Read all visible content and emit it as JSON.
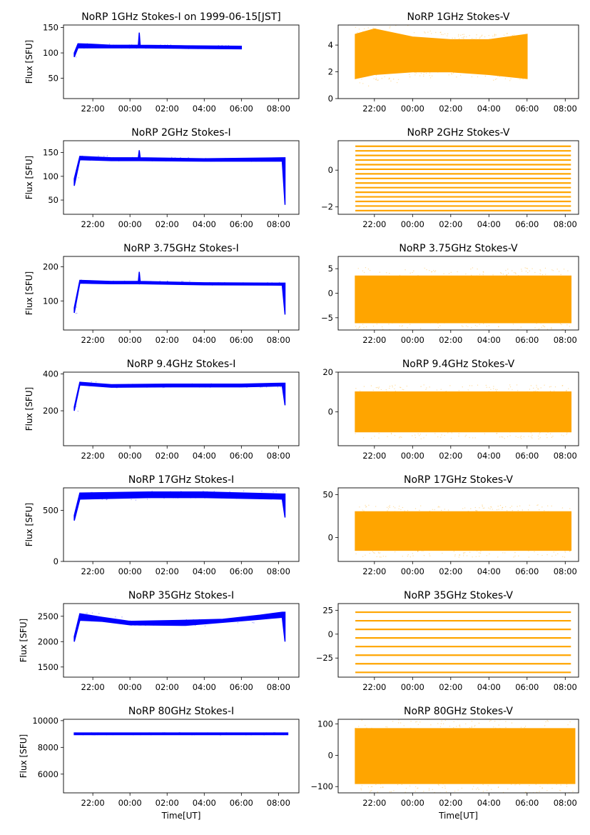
{
  "chart_data": [
    {
      "type": "scatter",
      "title": "NoRP 1GHz Stokes-I on 1999-06-15[JST]",
      "ylabel": "Flux [SFU]",
      "xlabel": "",
      "color": "#0000ff",
      "ylim": [
        10,
        155
      ],
      "yticks": [
        50,
        100,
        150
      ],
      "xlim": [
        20.42,
        33.1
      ],
      "band": [
        [
          21.0,
          92,
          100
        ],
        [
          21.2,
          110,
          118
        ],
        [
          22,
          110,
          117
        ],
        [
          23,
          110,
          115
        ],
        [
          24.45,
          110,
          115
        ],
        [
          24.5,
          110,
          140
        ],
        [
          24.55,
          110,
          115
        ],
        [
          27,
          109,
          114
        ],
        [
          30,
          108,
          113
        ]
      ]
    },
    {
      "type": "scatter",
      "title": "NoRP 1GHz Stokes-V",
      "ylabel": "",
      "xlabel": "",
      "color": "#ffa500",
      "ylim": [
        0,
        5.5
      ],
      "yticks": [
        0,
        2,
        4
      ],
      "xlim": [
        20.1,
        32.7
      ],
      "band": [
        [
          21.0,
          1.5,
          4.8
        ],
        [
          22,
          1.8,
          5.2
        ],
        [
          24,
          2,
          4.6
        ],
        [
          26,
          2,
          4.4
        ],
        [
          28,
          1.8,
          4.4
        ],
        [
          30,
          1.5,
          4.8
        ]
      ],
      "levels": [
        0
      ],
      "level_range": [
        30,
        32.6
      ]
    },
    {
      "type": "scatter",
      "title": "NoRP 2GHz Stokes-I",
      "ylabel": "Flux [SFU]",
      "xlabel": "",
      "color": "#0000ff",
      "ylim": [
        20,
        175
      ],
      "yticks": [
        50,
        100,
        150
      ],
      "xlim": [
        20.42,
        33.1
      ],
      "band": [
        [
          21.0,
          80,
          95
        ],
        [
          21.3,
          135,
          142
        ],
        [
          23,
          133,
          139
        ],
        [
          24.45,
          133,
          139
        ],
        [
          24.5,
          133,
          155
        ],
        [
          24.55,
          133,
          139
        ],
        [
          28,
          132,
          137
        ],
        [
          32.2,
          132,
          139
        ],
        [
          32.35,
          40,
          139
        ]
      ]
    },
    {
      "type": "scatter",
      "title": "NoRP 2GHz Stokes-V",
      "ylabel": "",
      "xlabel": "",
      "color": "#ffa500",
      "ylim": [
        -2.4,
        1.6
      ],
      "yticks": [
        -2,
        0
      ],
      "xlim": [
        20.1,
        32.7
      ],
      "levels": [
        -2.2,
        -1.95,
        -1.7,
        -1.45,
        -1.2,
        -0.95,
        -0.7,
        -0.45,
        -0.2,
        0.05,
        0.3,
        0.55,
        0.8,
        1.05,
        1.3
      ],
      "level_range": [
        21.0,
        32.3
      ]
    },
    {
      "type": "scatter",
      "title": "NoRP 3.75GHz Stokes-I",
      "ylabel": "Flux [SFU]",
      "xlabel": "",
      "color": "#0000ff",
      "ylim": [
        15,
        230
      ],
      "yticks": [
        100,
        200
      ],
      "xlim": [
        20.42,
        33.1
      ],
      "band": [
        [
          21.0,
          65,
          80
        ],
        [
          21.3,
          152,
          160
        ],
        [
          23,
          150,
          157
        ],
        [
          24.45,
          150,
          157
        ],
        [
          24.5,
          150,
          185
        ],
        [
          24.55,
          150,
          157
        ],
        [
          28,
          147,
          153
        ],
        [
          32.2,
          146,
          152
        ],
        [
          32.35,
          60,
          152
        ]
      ]
    },
    {
      "type": "scatter",
      "title": "NoRP 3.75GHz Stokes-V",
      "ylabel": "",
      "xlabel": "",
      "color": "#ffa500",
      "ylim": [
        -7.5,
        7.5
      ],
      "yticks": [
        -5,
        0,
        5
      ],
      "xlim": [
        20.1,
        32.7
      ],
      "band": [
        [
          21.0,
          -6,
          3.5
        ],
        [
          32.3,
          -6,
          3.5
        ]
      ]
    },
    {
      "type": "scatter",
      "title": "NoRP 9.4GHz Stokes-I",
      "ylabel": "Flux [SFU]",
      "xlabel": "",
      "color": "#0000ff",
      "ylim": [
        10,
        410
      ],
      "yticks": [
        200,
        400
      ],
      "xlim": [
        20.42,
        33.1
      ],
      "band": [
        [
          21.0,
          200,
          220
        ],
        [
          21.3,
          340,
          355
        ],
        [
          23,
          328,
          342
        ],
        [
          26,
          330,
          345
        ],
        [
          30,
          330,
          345
        ],
        [
          32.2,
          335,
          350
        ],
        [
          32.35,
          230,
          350
        ]
      ]
    },
    {
      "type": "scatter",
      "title": "NoRP 9.4GHz Stokes-V",
      "ylabel": "",
      "xlabel": "",
      "color": "#ffa500",
      "ylim": [
        -17,
        20
      ],
      "yticks": [
        0,
        20
      ],
      "xlim": [
        20.1,
        32.7
      ],
      "band": [
        [
          21.0,
          -10,
          10
        ],
        [
          32.3,
          -10,
          10
        ]
      ]
    },
    {
      "type": "scatter",
      "title": "NoRP 17GHz Stokes-I",
      "ylabel": "Flux [SFU]",
      "xlabel": "",
      "color": "#0000ff",
      "ylim": [
        0,
        720
      ],
      "yticks": [
        0,
        500
      ],
      "xlim": [
        20.42,
        33.1
      ],
      "band": [
        [
          21.0,
          400,
          450
        ],
        [
          21.3,
          610,
          670
        ],
        [
          25,
          625,
          680
        ],
        [
          28,
          625,
          680
        ],
        [
          32.2,
          610,
          660
        ],
        [
          32.35,
          430,
          660
        ]
      ],
      "levels": [
        0
      ],
      "level_range": [
        21.0,
        32.5
      ]
    },
    {
      "type": "scatter",
      "title": "NoRP 17GHz Stokes-V",
      "ylabel": "",
      "xlabel": "",
      "color": "#ffa500",
      "ylim": [
        -28,
        58
      ],
      "yticks": [
        0,
        50
      ],
      "xlim": [
        20.1,
        32.7
      ],
      "band": [
        [
          21.0,
          -15,
          30
        ],
        [
          32.3,
          -15,
          30
        ]
      ]
    },
    {
      "type": "scatter",
      "title": "NoRP 35GHz Stokes-I",
      "ylabel": "Flux [SFU]",
      "xlabel": "",
      "color": "#0000ff",
      "ylim": [
        1300,
        2750
      ],
      "yticks": [
        1500,
        2000,
        2500
      ],
      "xlim": [
        20.42,
        33.1
      ],
      "band": [
        [
          21.0,
          2000,
          2100
        ],
        [
          21.3,
          2420,
          2550
        ],
        [
          22.5,
          2400,
          2480
        ],
        [
          24,
          2330,
          2400
        ],
        [
          27,
          2320,
          2420
        ],
        [
          29,
          2380,
          2440
        ],
        [
          31,
          2440,
          2520
        ],
        [
          32.2,
          2480,
          2580
        ],
        [
          32.35,
          2000,
          2580
        ]
      ]
    },
    {
      "type": "scatter",
      "title": "NoRP 35GHz Stokes-V",
      "ylabel": "",
      "xlabel": "",
      "color": "#ffa500",
      "ylim": [
        -45,
        32
      ],
      "yticks": [
        -25,
        0,
        25
      ],
      "xlim": [
        20.1,
        32.7
      ],
      "levels": [
        -40,
        -31,
        -22,
        -13,
        -4,
        5,
        14,
        23
      ],
      "level_range": [
        21.0,
        32.3
      ]
    },
    {
      "type": "scatter",
      "title": "NoRP 80GHz Stokes-I",
      "ylabel": "Flux [SFU]",
      "xlabel": "Time[UT]",
      "color": "#0000ff",
      "ylim": [
        4600,
        10100
      ],
      "yticks": [
        6000,
        8000,
        10000
      ],
      "xlim": [
        20.42,
        33.1
      ],
      "band": [
        [
          21.0,
          8950,
          9080
        ],
        [
          32.5,
          8950,
          9080
        ]
      ]
    },
    {
      "type": "scatter",
      "title": "NoRP 80GHz Stokes-V",
      "ylabel": "",
      "xlabel": "Time[UT]",
      "color": "#ffa500",
      "ylim": [
        -120,
        115
      ],
      "yticks": [
        -100,
        0,
        100
      ],
      "xlim": [
        20.1,
        32.7
      ],
      "band": [
        [
          21.0,
          -90,
          85
        ],
        [
          32.5,
          -90,
          85
        ]
      ]
    }
  ],
  "xticks": [
    "22:00",
    "00:00",
    "02:00",
    "04:00",
    "06:00",
    "08:00"
  ]
}
